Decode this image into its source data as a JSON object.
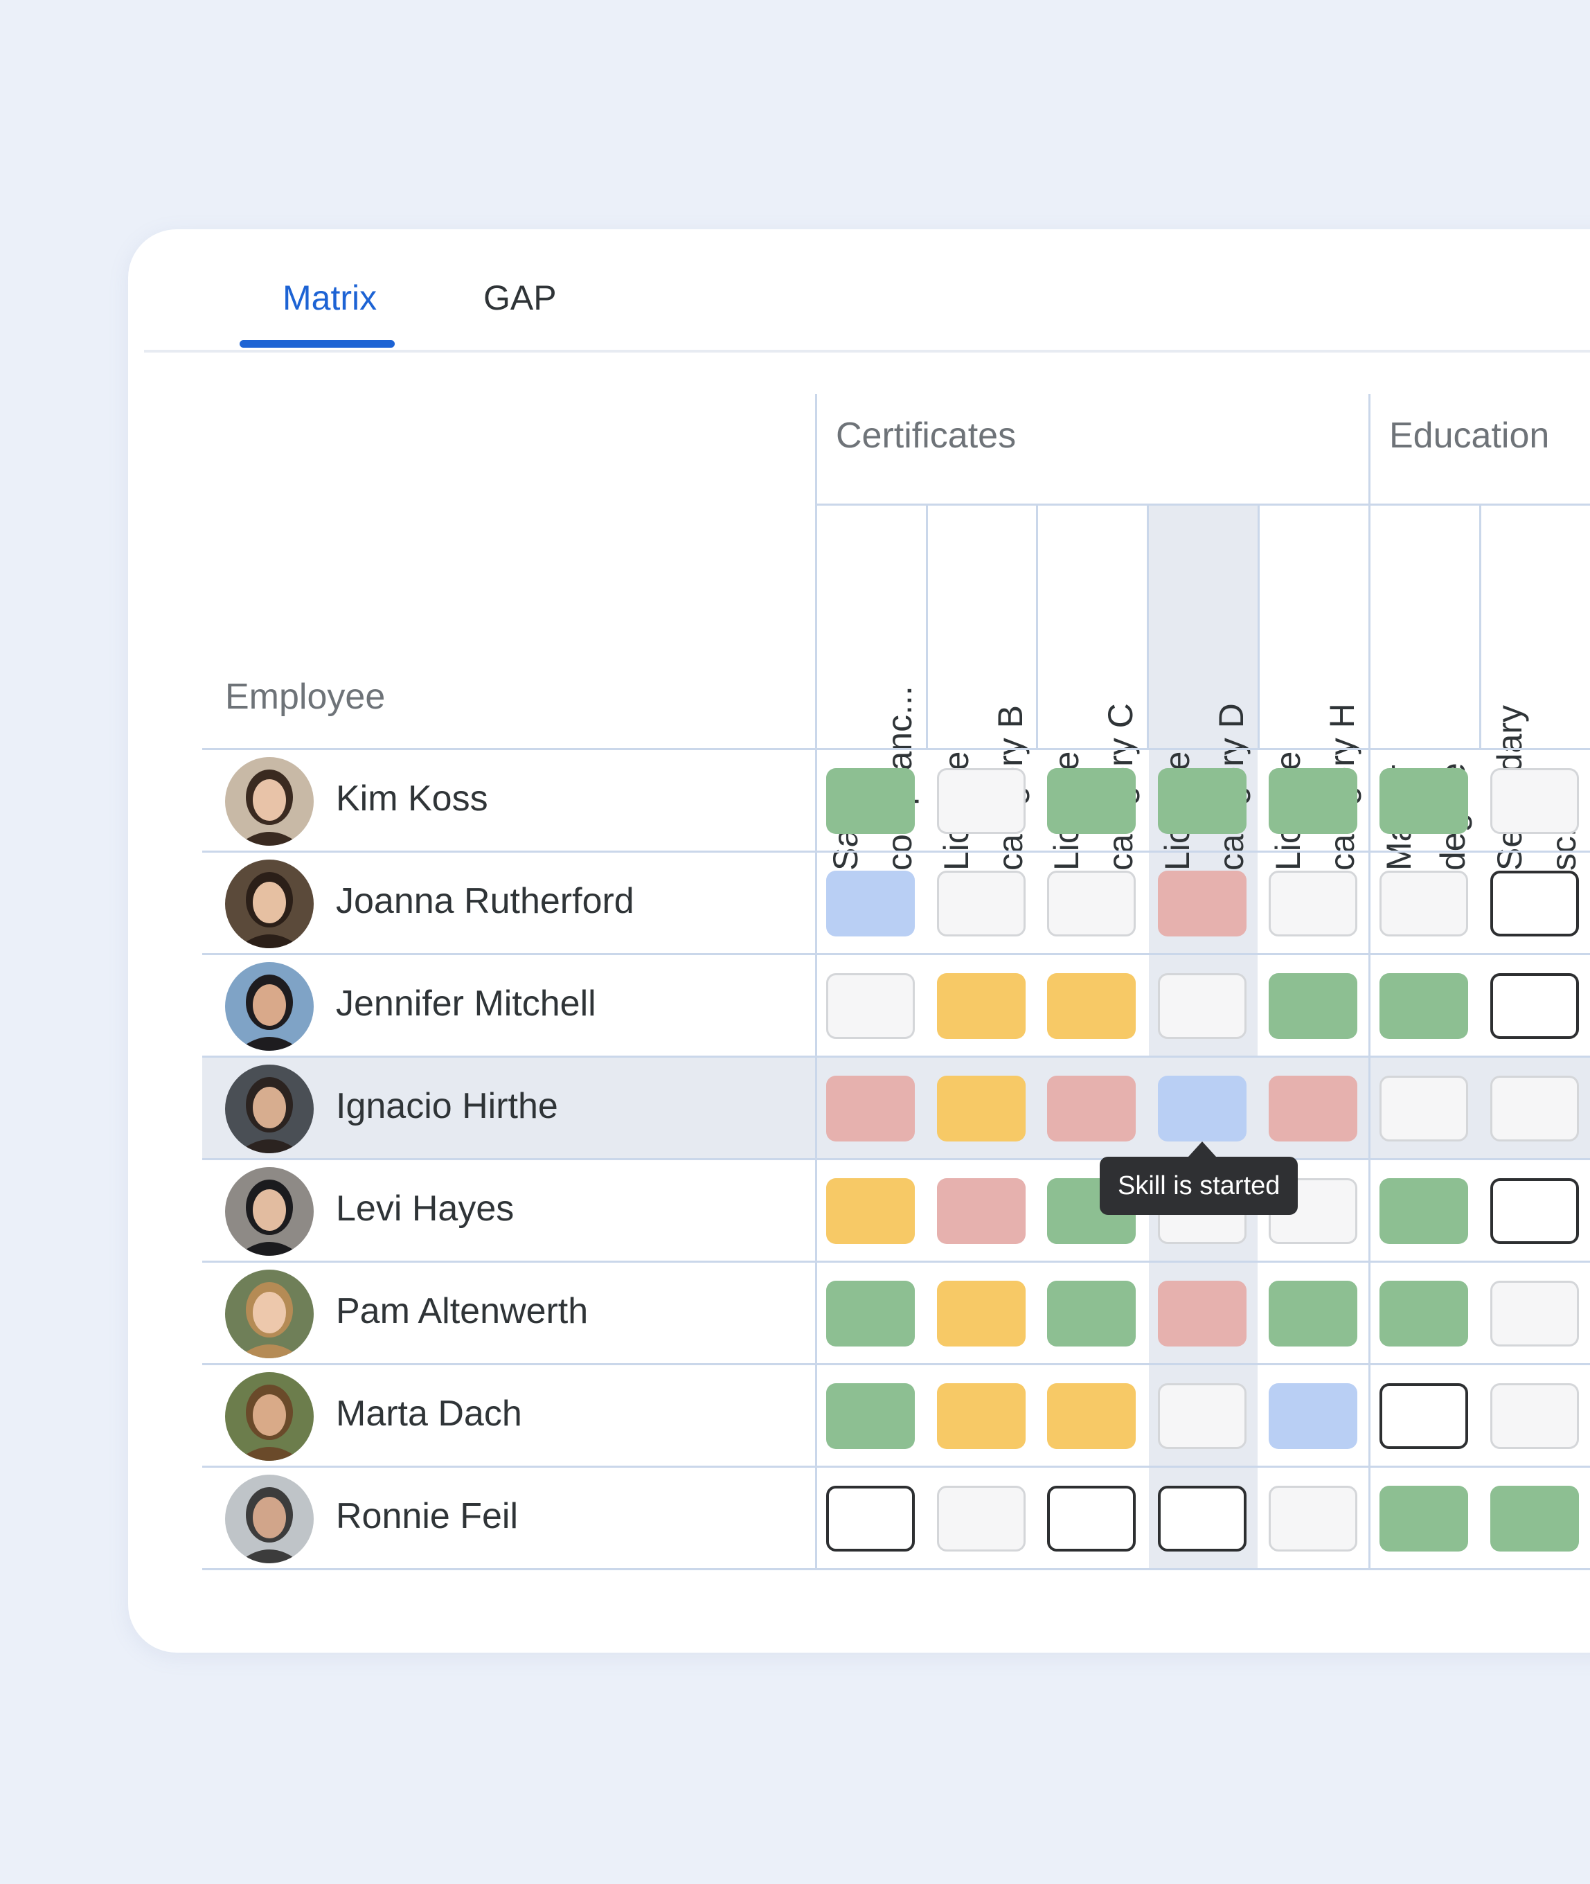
{
  "tabs": [
    {
      "label": "Matrix",
      "active": true
    },
    {
      "label": "GAP",
      "active": false
    }
  ],
  "matrix": {
    "employee_header": "Employee",
    "groups": [
      {
        "label": "Certificates"
      },
      {
        "label": "Education"
      }
    ],
    "columns": [
      {
        "label": "Safety complianc...",
        "group": "Certificates"
      },
      {
        "label": "License category B",
        "group": "Certificates"
      },
      {
        "label": "License category C",
        "group": "Certificates"
      },
      {
        "label": "License category D",
        "group": "Certificates",
        "highlighted": true
      },
      {
        "label": "License category H",
        "group": "Certificates"
      },
      {
        "label": "Master degree",
        "group": "Education"
      },
      {
        "label": "Secondary school",
        "group": "Education"
      }
    ],
    "rows": [
      {
        "name": "Kim Koss",
        "cells": [
          "green",
          "empty",
          "green",
          "green",
          "green",
          "green",
          "empty"
        ]
      },
      {
        "name": "Joanna Rutherford",
        "cells": [
          "blue",
          "empty",
          "empty",
          "red",
          "empty",
          "empty",
          "outline"
        ]
      },
      {
        "name": "Jennifer Mitchell",
        "cells": [
          "empty",
          "yellow",
          "yellow",
          "empty",
          "green",
          "green",
          "outline"
        ]
      },
      {
        "name": "Ignacio Hirthe",
        "cells": [
          "red",
          "yellow",
          "red",
          "blue",
          "red",
          "empty",
          "empty"
        ],
        "highlighted": true
      },
      {
        "name": "Levi Hayes",
        "cells": [
          "yellow",
          "red",
          "green",
          "empty",
          "empty",
          "green",
          "outline"
        ]
      },
      {
        "name": "Pam Altenwerth",
        "cells": [
          "green",
          "yellow",
          "green",
          "red",
          "green",
          "green",
          "empty"
        ]
      },
      {
        "name": "Marta Dach",
        "cells": [
          "green",
          "yellow",
          "yellow",
          "empty",
          "blue",
          "outline",
          "empty"
        ]
      },
      {
        "name": "Ronnie Feil",
        "cells": [
          "outline",
          "empty",
          "outline",
          "outline",
          "empty",
          "green",
          "green"
        ]
      }
    ]
  },
  "tooltip": {
    "text": "Skill is started"
  },
  "colors": {
    "accent": "#1d63d4",
    "green": "#8dbf92",
    "yellow": "#f7c966",
    "red": "#e6b1ae",
    "blue": "#b9cff4",
    "empty": "#f6f6f7",
    "highlight": "#e6eaf1"
  }
}
